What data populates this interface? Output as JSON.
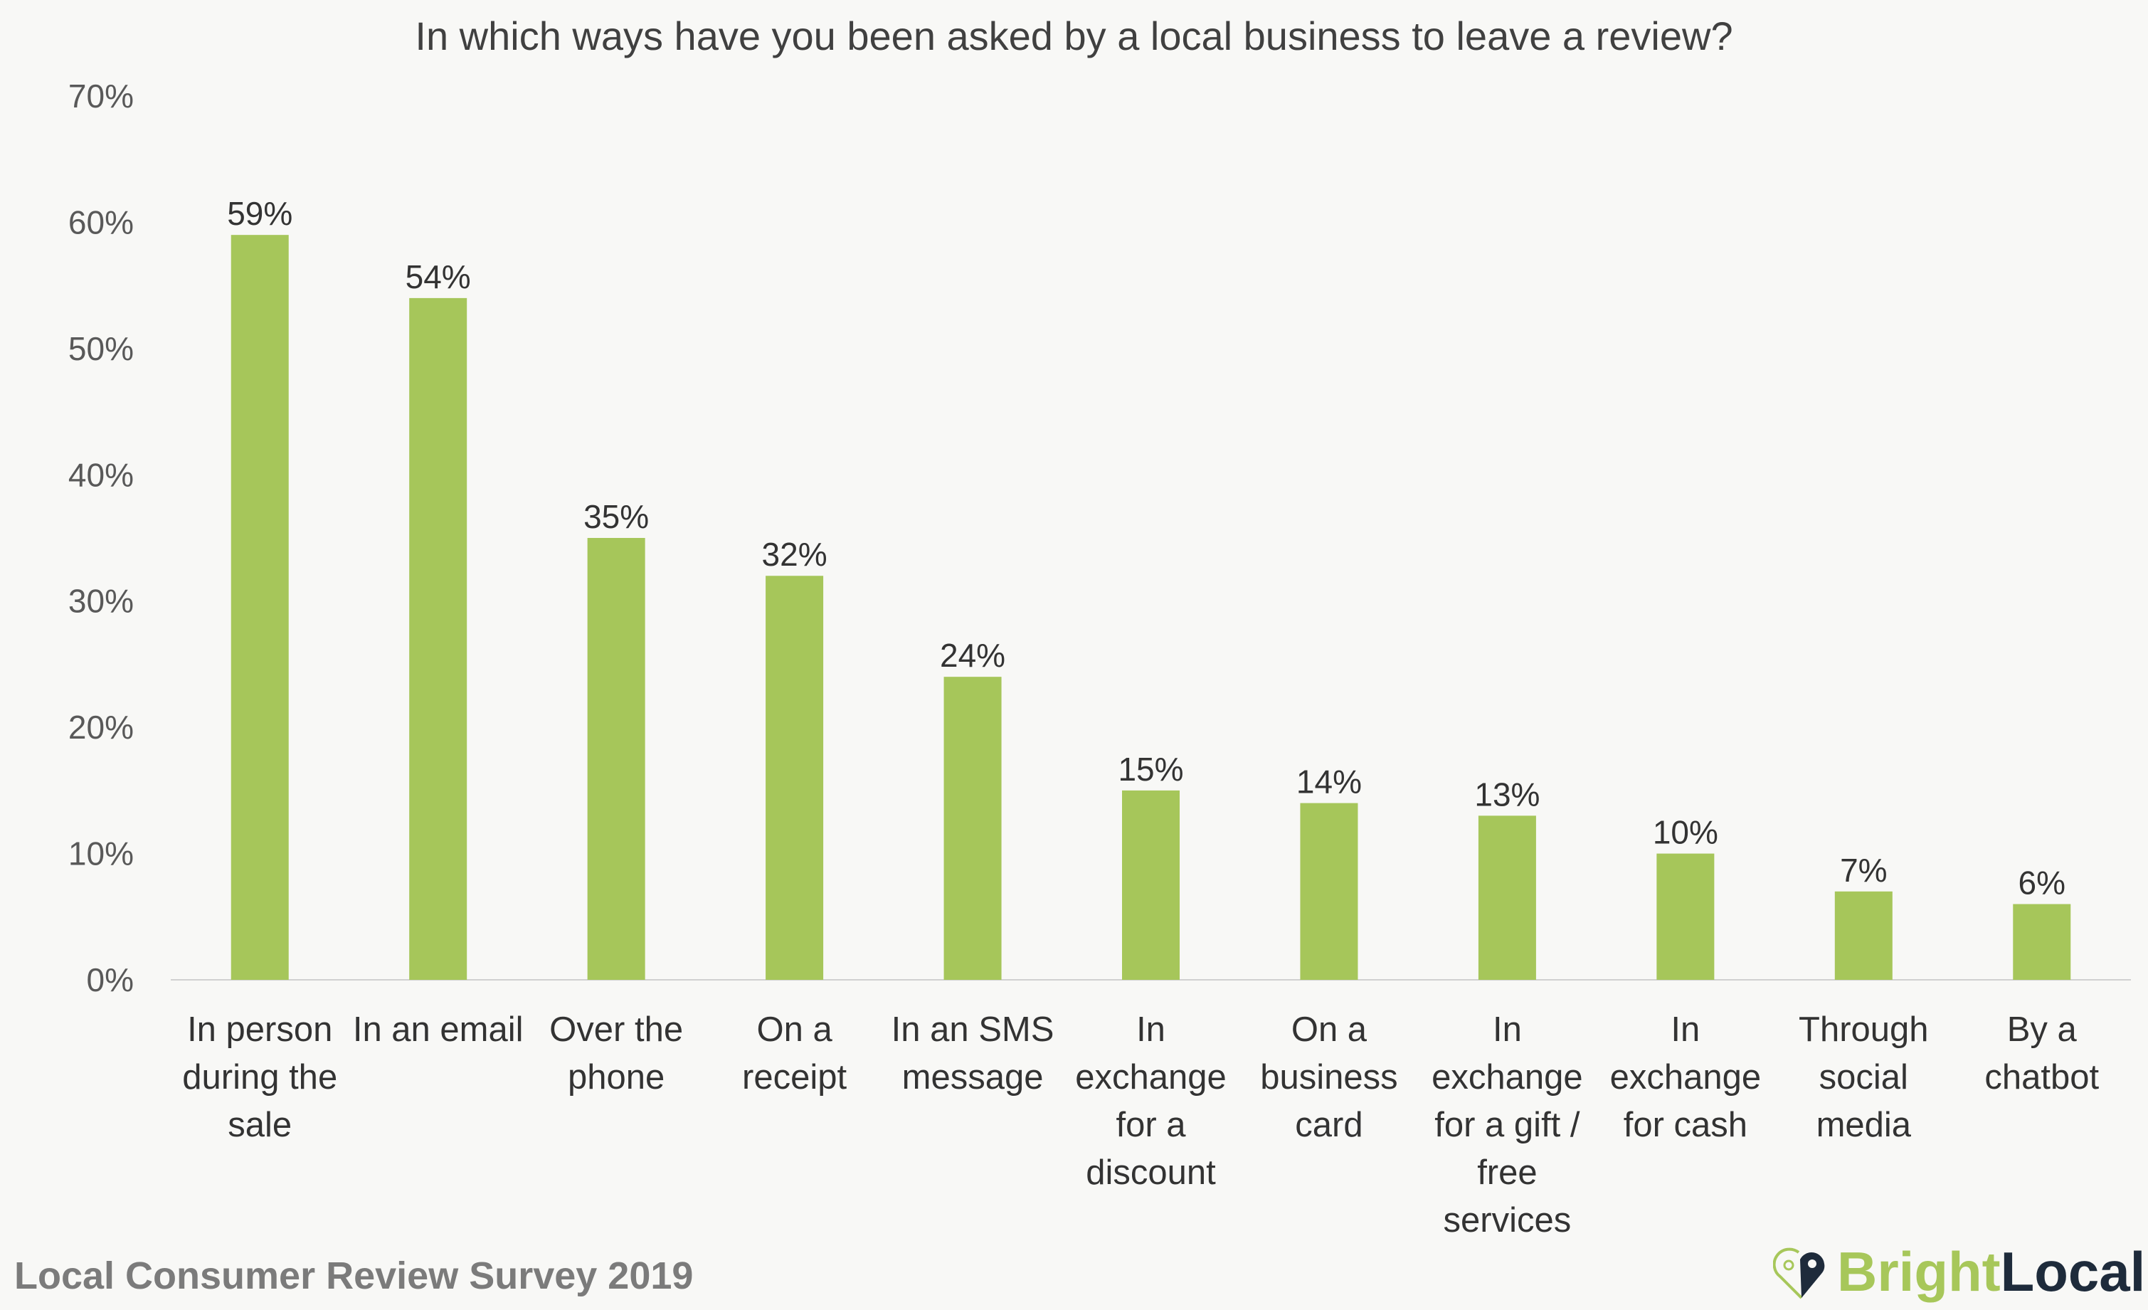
{
  "chart_data": {
    "type": "bar",
    "title": "In which ways have you been asked by a local business to leave a review?",
    "categories": [
      [
        "In person",
        "during the",
        "sale"
      ],
      [
        "In an email"
      ],
      [
        "Over the",
        "phone"
      ],
      [
        "On a",
        "receipt"
      ],
      [
        "In an SMS",
        "message"
      ],
      [
        "In",
        "exchange",
        "for a",
        "discount"
      ],
      [
        "On a",
        "business",
        "card"
      ],
      [
        "In",
        "exchange",
        "for a gift /",
        "free",
        "services"
      ],
      [
        "In",
        "exchange",
        "for cash"
      ],
      [
        "Through",
        "social",
        "media"
      ],
      [
        "By a",
        "chatbot"
      ]
    ],
    "values": [
      59,
      54,
      35,
      32,
      24,
      15,
      14,
      13,
      10,
      7,
      6
    ],
    "data_labels": [
      "59%",
      "54%",
      "35%",
      "32%",
      "24%",
      "15%",
      "14%",
      "13%",
      "10%",
      "7%",
      "6%"
    ],
    "ylim": [
      0,
      70
    ],
    "yticks": [
      "0%",
      "10%",
      "20%",
      "30%",
      "40%",
      "50%",
      "60%",
      "70%"
    ],
    "grid": false,
    "xlabel": "",
    "ylabel": "",
    "bar_color": "#a6c65a"
  },
  "footer": "Local Consumer Review Survey 2019",
  "logo": {
    "part1": "Bright",
    "part2": "Local",
    "colors": [
      "#a7c75a",
      "#1e2b3b"
    ]
  }
}
